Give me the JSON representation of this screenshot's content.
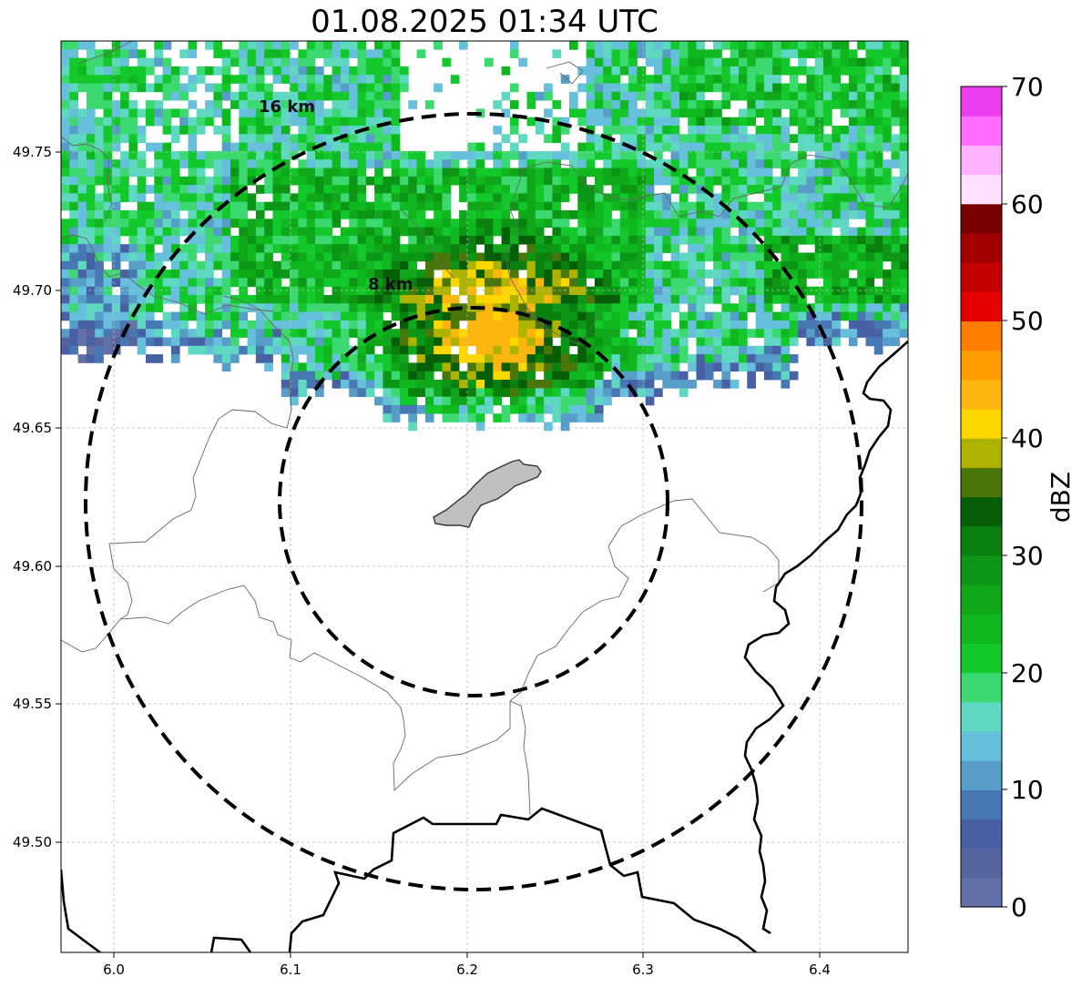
{
  "title": "01.08.2025 01:34 UTC",
  "map": {
    "x_ticks": [
      "6.0",
      "6.1",
      "6.2",
      "6.3",
      "6.4"
    ],
    "y_ticks": [
      "49.75",
      "49.70",
      "49.65",
      "49.60",
      "49.55",
      "49.50"
    ],
    "rings": [
      {
        "label": "8 km",
        "radius_km": 8
      },
      {
        "label": "16 km",
        "radius_km": 16
      }
    ]
  },
  "colorbar": {
    "label": "dBZ",
    "ticks": [
      "70",
      "60",
      "50",
      "40",
      "30",
      "20",
      "10",
      "0"
    ],
    "range": [
      0,
      70
    ],
    "colors": [
      "#6470a8",
      "#55659e",
      "#4860a4",
      "#4878b4",
      "#569ec8",
      "#66c0dc",
      "#5ed8c0",
      "#3cd870",
      "#12c82a",
      "#10b820",
      "#10a81a",
      "#0c9616",
      "#0a800e",
      "#075e08",
      "#4a760a",
      "#adb300",
      "#ffd700",
      "#fdb50f",
      "#ff9c00",
      "#ff7d00",
      "#e60000",
      "#c40000",
      "#a20000",
      "#780000",
      "#ffe0ff",
      "#ffb3ff",
      "#ff6cff",
      "#ec3cf0"
    ]
  },
  "colors": {
    "frame": "#000000",
    "town_fill": "#c0c0c0",
    "grid": "#bbbbbb"
  }
}
